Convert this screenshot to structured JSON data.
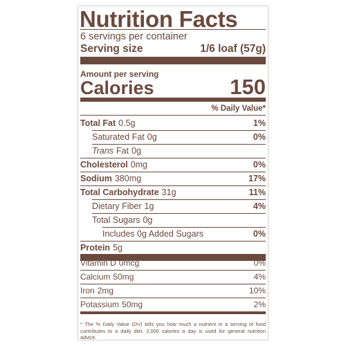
{
  "label": {
    "title": "Nutrition Facts",
    "servings": "6 servings per container",
    "serving_size": {
      "label": "Serving size",
      "value": "1/6 loaf (57g)"
    },
    "amount_per_serving": "Amount per serving",
    "calories": {
      "label": "Calories",
      "value": "150"
    },
    "daily_value_header": "% Daily Value*",
    "nutrients": [
      {
        "name": "Total Fat",
        "amount": "0.5g",
        "dv": "1%",
        "indent": 0
      },
      {
        "name": "Saturated Fat",
        "amount": "0g",
        "dv": "0%",
        "indent": 1
      },
      {
        "name_italic": "Trans",
        "name": "Fat",
        "amount": "0g",
        "indent": 1
      },
      {
        "name": "Cholesterol",
        "amount": "0mg",
        "dv": "0%",
        "indent": 0
      },
      {
        "name": "Sodium",
        "amount": "380mg",
        "dv": "17%",
        "indent": 0
      },
      {
        "name": "Total Carbohydrate",
        "amount": "31g",
        "dv": "11%",
        "indent": 0
      },
      {
        "name": "Dietary Fiber",
        "amount": "1g",
        "dv": "4%",
        "indent": 1
      },
      {
        "name": "Total Sugars",
        "amount": "0g",
        "indent": 1
      },
      {
        "name": "Includes 0g Added Sugars",
        "dv": "0%",
        "indent": 2
      },
      {
        "name": "Protein",
        "amount": "5g",
        "indent": 0
      }
    ],
    "vitamins": [
      {
        "name": "Vitamin D",
        "amount": "0mcg",
        "dv": "0%"
      },
      {
        "name": "Calcium",
        "amount": "50mg",
        "dv": "4%"
      },
      {
        "name": "Iron",
        "amount": "2mg",
        "dv": "10%"
      },
      {
        "name": "Potassium",
        "amount": "50mg",
        "dv": "2%"
      }
    ],
    "footnote": "* The % Daily Value (DV) tells you how much a nutrient in a serving of food contributes to a daily diet. 2,000 calories a day is used for general nutrition advice."
  }
}
